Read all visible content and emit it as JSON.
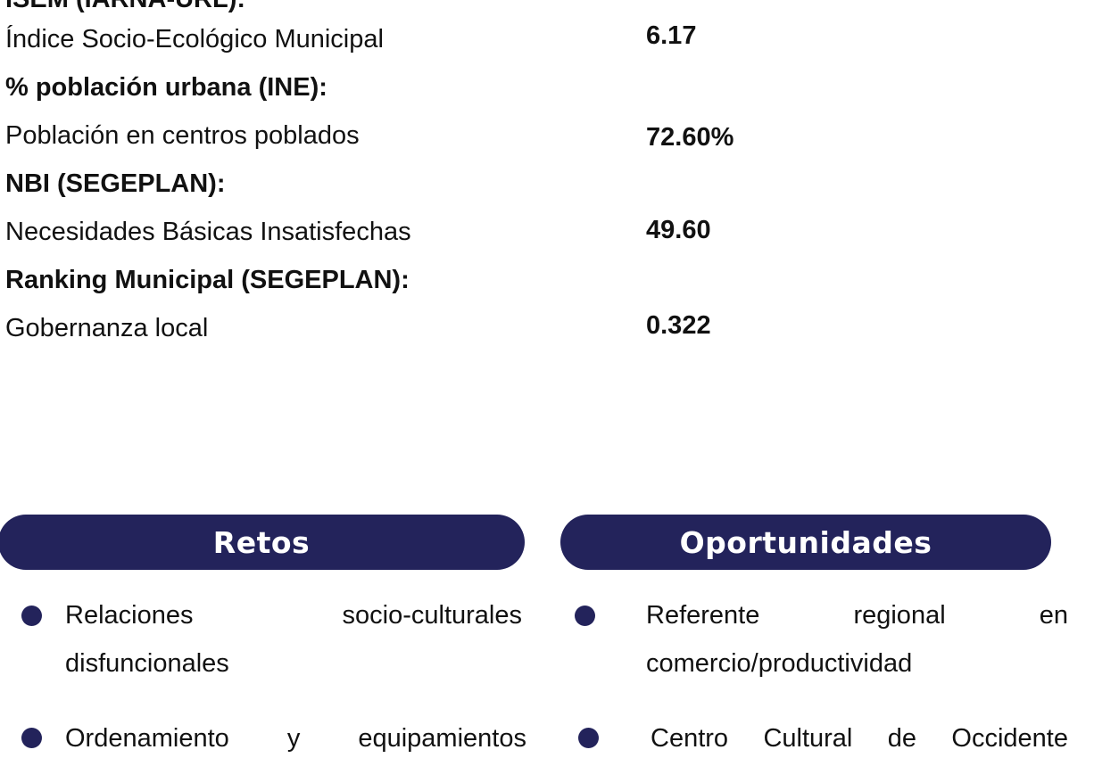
{
  "indicators": {
    "cut_heading": "ISEM (IARNA-URL):",
    "rows": [
      {
        "label": "Índice Socio-Ecológico Municipal",
        "value": "6.17"
      },
      {
        "heading": "% población urbana (INE):"
      },
      {
        "label": "Población en centros poblados",
        "value": "72.60%"
      },
      {
        "heading": "NBI (SEGEPLAN):"
      },
      {
        "label": "Necesidades Básicas Insatisfechas",
        "value": "49.60"
      },
      {
        "heading": "Ranking Municipal (SEGEPLAN):"
      },
      {
        "label": "Gobernanza local",
        "value": "0.322"
      }
    ]
  },
  "retos": {
    "title": "Retos",
    "items": [
      {
        "line1": [
          "Relaciones",
          "socio-culturales"
        ],
        "line2": "disfuncionales"
      },
      {
        "line1": [
          "Ordenamiento",
          "y",
          "equipamientos"
        ]
      }
    ]
  },
  "oportunidades": {
    "title": "Oportunidades",
    "items": [
      {
        "line1": [
          "Referente",
          "regional",
          "en"
        ],
        "line2": "comercio/productividad"
      },
      {
        "line1": [
          "Centro",
          "Cultural",
          "de",
          "Occidente"
        ]
      }
    ]
  },
  "colors": {
    "accent": "#23235b",
    "text": "#111111",
    "background": "#ffffff"
  }
}
